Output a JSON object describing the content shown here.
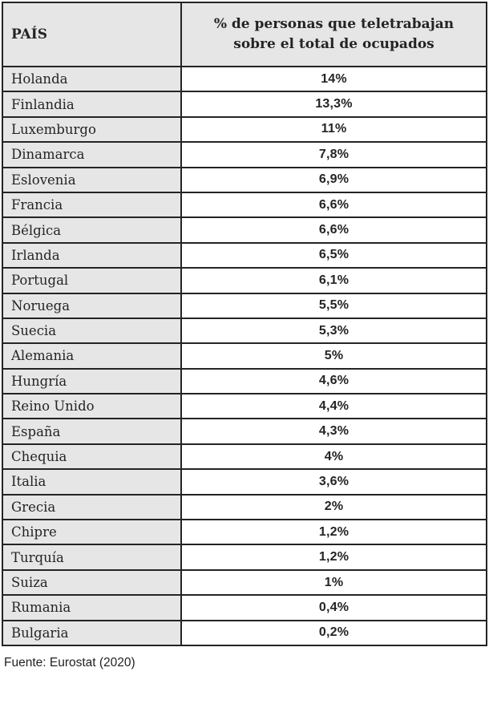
{
  "colors": {
    "border": "#262324",
    "header_and_country_bg": "#e6e6e6",
    "value_bg": "#ffffff",
    "text": "#262324"
  },
  "table": {
    "header": {
      "country": "PAÍS",
      "value": "% de personas que teletrabajan sobre el total de ocupados"
    },
    "rows": [
      {
        "country": "Holanda",
        "value": "14%"
      },
      {
        "country": "Finlandia",
        "value": "13,3%"
      },
      {
        "country": "Luxemburgo",
        "value": "11%"
      },
      {
        "country": "Dinamarca",
        "value": "7,8%"
      },
      {
        "country": "Eslovenia",
        "value": "6,9%"
      },
      {
        "country": "Francia",
        "value": "6,6%"
      },
      {
        "country": "Bélgica",
        "value": "6,6%"
      },
      {
        "country": "Irlanda",
        "value": "6,5%"
      },
      {
        "country": "Portugal",
        "value": "6,1%"
      },
      {
        "country": "Noruega",
        "value": "5,5%"
      },
      {
        "country": "Suecia",
        "value": "5,3%"
      },
      {
        "country": "Alemania",
        "value": "5%"
      },
      {
        "country": "Hungría",
        "value": "4,6%"
      },
      {
        "country": "Reino Unido",
        "value": "4,4%"
      },
      {
        "country": "España",
        "value": "4,3%"
      },
      {
        "country": "Chequia",
        "value": "4%"
      },
      {
        "country": "Italia",
        "value": "3,6%"
      },
      {
        "country": "Grecia",
        "value": "2%"
      },
      {
        "country": "Chipre",
        "value": "1,2%"
      },
      {
        "country": "Turquía",
        "value": "1,2%"
      },
      {
        "country": "Suiza",
        "value": "1%"
      },
      {
        "country": "Rumania",
        "value": "0,4%"
      },
      {
        "country": "Bulgaria",
        "value": "0,2%"
      }
    ]
  },
  "footer": {
    "source": "Fuente: Eurostat (2020)"
  },
  "chart_data": {
    "type": "table",
    "title": "% de personas que teletrabajan sobre el total de ocupados",
    "columns": [
      "PAÍS",
      "% de personas que teletrabajan sobre el total de ocupados"
    ],
    "categories": [
      "Holanda",
      "Finlandia",
      "Luxemburgo",
      "Dinamarca",
      "Eslovenia",
      "Francia",
      "Bélgica",
      "Irlanda",
      "Portugal",
      "Noruega",
      "Suecia",
      "Alemania",
      "Hungría",
      "Reino Unido",
      "España",
      "Chequia",
      "Italia",
      "Grecia",
      "Chipre",
      "Turquía",
      "Suiza",
      "Rumania",
      "Bulgaria"
    ],
    "values": [
      14,
      13.3,
      11,
      7.8,
      6.9,
      6.6,
      6.6,
      6.5,
      6.1,
      5.5,
      5.3,
      5,
      4.6,
      4.4,
      4.3,
      4,
      3.6,
      2,
      1.2,
      1.2,
      1,
      0.4,
      0.2
    ],
    "value_unit": "%",
    "decimal_separator": ",",
    "source": "Fuente: Eurostat (2020)",
    "layout": "two-column table, country column shaded gray, values centered"
  }
}
